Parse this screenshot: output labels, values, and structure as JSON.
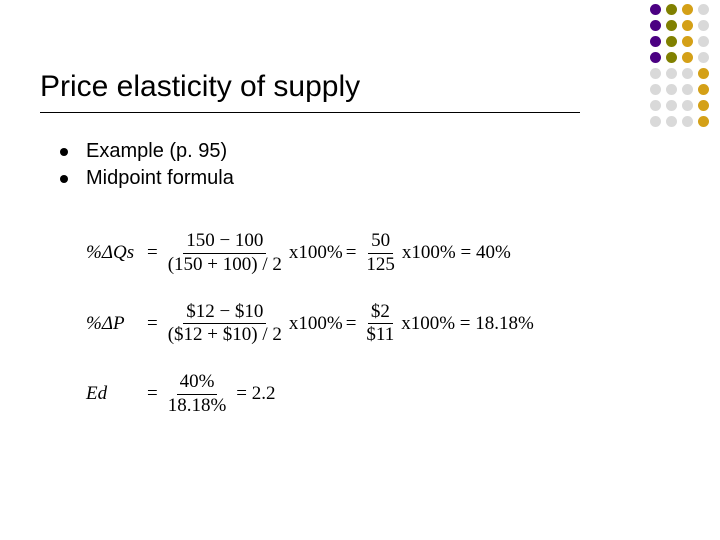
{
  "title": "Price elasticity of supply",
  "bullets": [
    "Example (p. 95)",
    "Midpoint formula"
  ],
  "eq1": {
    "lhs": "%ΔQs",
    "frac1_num": "150 − 100",
    "frac1_den": "(150 + 100) / 2",
    "mid": "x100%",
    "frac2_num": "50",
    "frac2_den": "125",
    "tail": "x100% = 40%"
  },
  "eq2": {
    "lhs": "%ΔP",
    "frac1_num": "$12 − $10",
    "frac1_den": "($12 + $10) / 2",
    "mid": "x100%",
    "frac2_num": "$2",
    "frac2_den": "$11",
    "tail": "x100% = 18.18%"
  },
  "eq3": {
    "lhs": "Ed",
    "frac_num": "40%",
    "frac_den": "18.18%",
    "tail": "= 2.2"
  },
  "deco": {
    "colors": {
      "purple": "#4b0082",
      "olive": "#808000",
      "gold": "#d4a017",
      "grey": "#d9d9d9"
    },
    "grid": [
      [
        "purple",
        "olive",
        "gold",
        "grey"
      ],
      [
        "purple",
        "olive",
        "gold",
        "grey"
      ],
      [
        "purple",
        "olive",
        "gold",
        "grey"
      ],
      [
        "purple",
        "olive",
        "gold",
        "grey"
      ],
      [
        "grey",
        "grey",
        "grey",
        "gold"
      ],
      [
        "grey",
        "grey",
        "grey",
        "gold"
      ],
      [
        "grey",
        "grey",
        "grey",
        "gold"
      ],
      [
        "grey",
        "grey",
        "grey",
        "gold"
      ]
    ]
  }
}
